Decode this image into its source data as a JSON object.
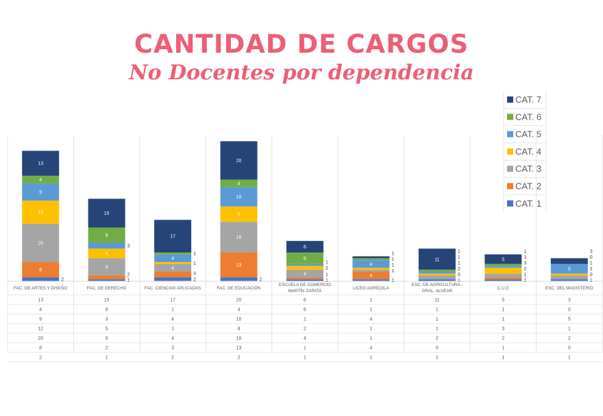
{
  "chart_data": {
    "type": "bar",
    "stacked": true,
    "title": "CANTIDAD DE CARGOS",
    "subtitle": "No Docentes por dependencia",
    "categories": [
      "FAC. DE ARTES Y DISEÑO",
      "FAC. DE DERECHO",
      "FAC. CIENCIAS APLICADAS",
      "FAC. DE EDUCACIÓN",
      "ESCUELA DE COMERCIO MARTÍN ZAPATA",
      "LICEO AGRÍCOLA",
      "ESC. DE AGRICULTURA - GRAL. ALVEAR",
      "C.U.C",
      "ESC. DEL MAGISTERIO"
    ],
    "series": [
      {
        "name": "CAT. 1",
        "color": "#4472c4",
        "values": [
          2,
          1,
          2,
          2,
          1,
          1,
          1,
          1,
          1
        ]
      },
      {
        "name": "CAT. 2",
        "color": "#ed7d31",
        "values": [
          8,
          2,
          3,
          13,
          1,
          4,
          0,
          1,
          0
        ]
      },
      {
        "name": "CAT. 3",
        "color": "#a5a5a5",
        "values": [
          20,
          9,
          4,
          16,
          4,
          1,
          2,
          2,
          2
        ]
      },
      {
        "name": "CAT. 4",
        "color": "#ffc000",
        "values": [
          12,
          5,
          1,
          8,
          2,
          1,
          1,
          3,
          1
        ]
      },
      {
        "name": "CAT. 5",
        "color": "#5b9bd5",
        "values": [
          9,
          3,
          4,
          10,
          1,
          4,
          1,
          1,
          5
        ]
      },
      {
        "name": "CAT. 6",
        "color": "#70ad47",
        "values": [
          4,
          8,
          1,
          4,
          6,
          1,
          1,
          1,
          0
        ]
      },
      {
        "name": "CAT. 7",
        "color": "#264478",
        "values": [
          13,
          15,
          17,
          20,
          6,
          1,
          11,
          5,
          3
        ]
      }
    ],
    "ylim": [
      0,
      76
    ],
    "grid": false,
    "legend": "right",
    "data_table": true,
    "title_color": "#ec5f75"
  }
}
